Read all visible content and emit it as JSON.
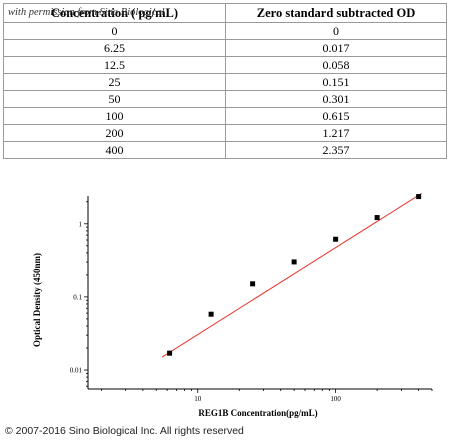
{
  "table": {
    "headers": [
      "Concentration ( pg/mL)",
      "Zero standard subtracted OD"
    ],
    "watermark": "with permission from Sino Biological",
    "rows": [
      [
        "0",
        "0"
      ],
      [
        "6.25",
        "0.017"
      ],
      [
        "12.5",
        "0.058"
      ],
      [
        "25",
        "0.151"
      ],
      [
        "50",
        "0.301"
      ],
      [
        "100",
        "0.615"
      ],
      [
        "200",
        "1.217"
      ],
      [
        "400",
        "2.357"
      ]
    ]
  },
  "chart_data": {
    "type": "scatter",
    "title": "",
    "xlabel": "REG1B  Concentration(pg/mL)",
    "ylabel": "Optical Density (450nm)",
    "x_scale": "log",
    "y_scale": "log",
    "xlim": [
      1.6,
      500
    ],
    "ylim": [
      0.0055,
      2.4
    ],
    "x_ticks": [
      {
        "value": 10,
        "label": "10"
      },
      {
        "value": 100,
        "label": "100"
      }
    ],
    "y_ticks": [
      {
        "value": 0.01,
        "label": "0.01"
      },
      {
        "value": 0.1,
        "label": "0.1"
      },
      {
        "value": 1,
        "label": "1"
      }
    ],
    "points": [
      {
        "x": 6.25,
        "y": 0.017
      },
      {
        "x": 12.5,
        "y": 0.058
      },
      {
        "x": 25,
        "y": 0.151
      },
      {
        "x": 50,
        "y": 0.301
      },
      {
        "x": 100,
        "y": 0.615
      },
      {
        "x": 200,
        "y": 1.217
      },
      {
        "x": 400,
        "y": 2.357
      }
    ],
    "fit_line": {
      "x": [
        5.5,
        420
      ],
      "y": [
        0.015,
        2.6
      ],
      "color": "#e8322b"
    },
    "marker_color": "#000000",
    "grid": false
  },
  "copyright": "© 2007-2016 Sino Biological Inc. All rights reserved"
}
